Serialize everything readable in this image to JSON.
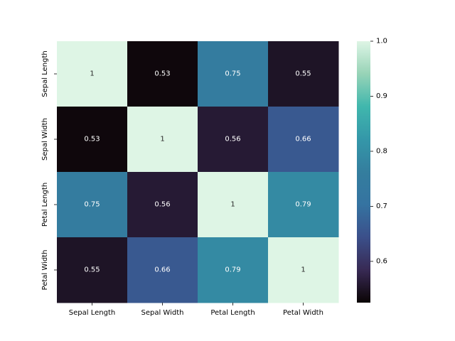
{
  "chart_data": {
    "type": "heatmap",
    "title": "",
    "xlabel": "",
    "ylabel": "",
    "categories_x": [
      "Sepal Length",
      "Sepal Width",
      "Petal Length",
      "Petal Width"
    ],
    "categories_y": [
      "Sepal Length",
      "Sepal Width",
      "Petal Length",
      "Petal Width"
    ],
    "values": [
      [
        1,
        0.53,
        0.75,
        0.55
      ],
      [
        0.53,
        1,
        0.56,
        0.66
      ],
      [
        0.75,
        0.56,
        1,
        0.79
      ],
      [
        0.55,
        0.66,
        0.79,
        1
      ]
    ],
    "cell_labels": [
      [
        "1",
        "0.53",
        "0.75",
        "0.55"
      ],
      [
        "0.53",
        "1",
        "0.56",
        "0.66"
      ],
      [
        "0.75",
        "0.56",
        "1",
        "0.79"
      ],
      [
        "0.55",
        "0.66",
        "0.79",
        "1"
      ]
    ],
    "colorbar": {
      "vmin": 0.525,
      "vmax": 1.0,
      "ticks": [
        0.6,
        0.7,
        0.8,
        0.9,
        1.0
      ],
      "tick_labels": [
        "0.6",
        "0.7",
        "0.8",
        "0.9",
        "1.0"
      ]
    },
    "colormap": "mako",
    "colormap_stops": [
      "#0b0405",
      "#382a54",
      "#3b4f8a",
      "#3573a1",
      "#347e9e",
      "#3497a9",
      "#40b7ad",
      "#97d3b7",
      "#def5e5"
    ],
    "text_color_light": "#ffffff",
    "text_color_dark": "#262626"
  }
}
